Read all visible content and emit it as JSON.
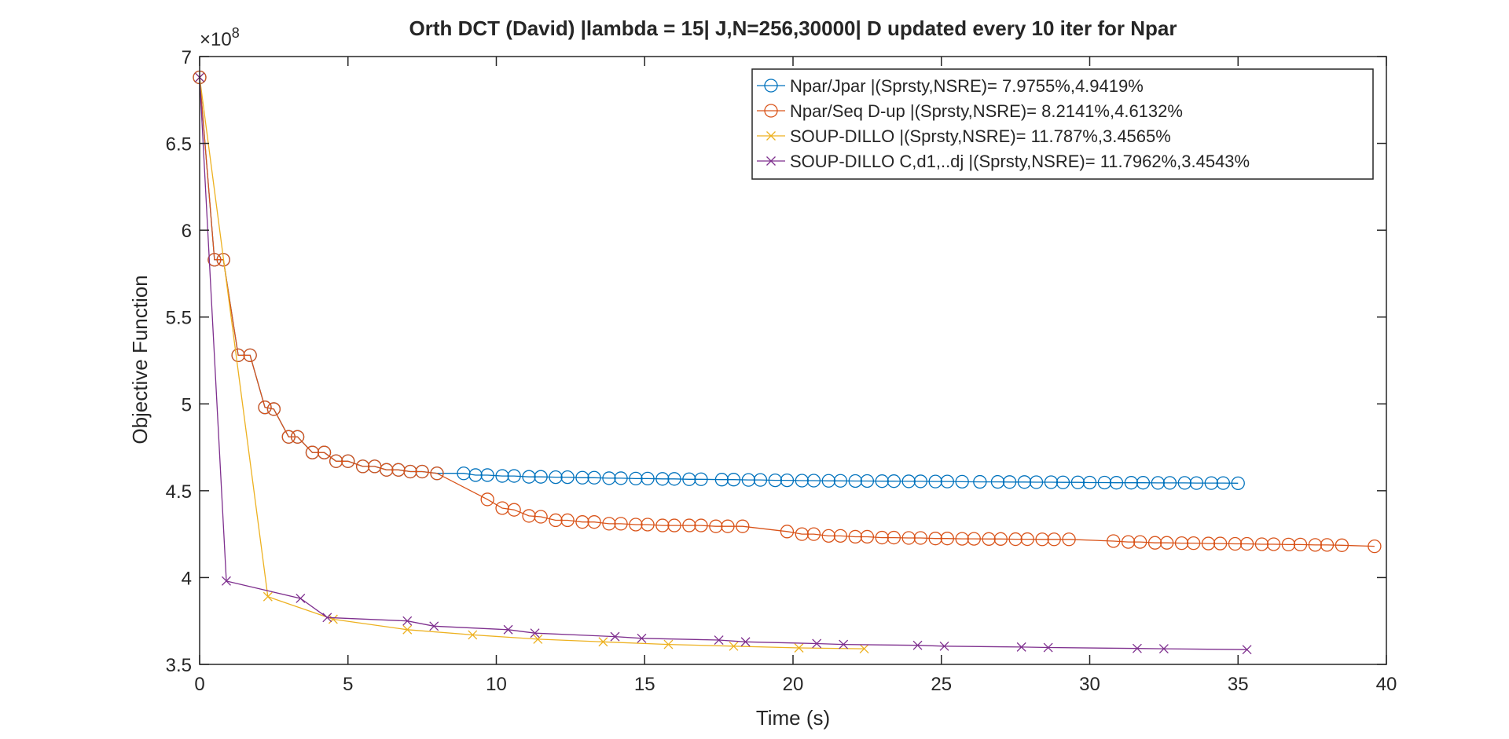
{
  "chart_data": {
    "type": "line",
    "title": "Orth DCT (David) |lambda = 15| J,N=256,30000| D updated every 10 iter for Npar",
    "xlabel": "Time (s)",
    "ylabel": "Objective Function",
    "y_exponent_label": "×10",
    "y_exponent_power": "8",
    "xlim": [
      0,
      40
    ],
    "ylim": [
      3.5,
      7
    ],
    "xticks": [
      0,
      5,
      10,
      15,
      20,
      25,
      30,
      35,
      40
    ],
    "yticks": [
      3.5,
      4,
      4.5,
      5,
      5.5,
      6,
      6.5,
      7
    ],
    "xtick_labels": [
      "0",
      "5",
      "10",
      "15",
      "20",
      "25",
      "30",
      "35",
      "40"
    ],
    "ytick_labels": [
      "3.5",
      "4",
      "4.5",
      "5",
      "5.5",
      "6",
      "6.5",
      "7"
    ],
    "grid": false,
    "legend_position": "top-right",
    "series": [
      {
        "name": "Npar/Jpar |(Sprsty,NSRE)= 7.9755%,4.9419%",
        "color": "#0072BD",
        "marker": "circle",
        "x": [
          0,
          0.5,
          0.8,
          1.3,
          1.7,
          2.2,
          2.5,
          3.0,
          3.3,
          3.8,
          4.2,
          4.6,
          5.0,
          5.5,
          5.9,
          6.3,
          6.7,
          7.1,
          7.5,
          8.0,
          8.9,
          9.3,
          9.7,
          10.2,
          10.6,
          11.1,
          11.5,
          12.0,
          12.4,
          12.9,
          13.3,
          13.8,
          14.2,
          14.7,
          15.1,
          15.6,
          16.0,
          16.5,
          16.9,
          17.6,
          18.0,
          18.5,
          18.9,
          19.4,
          19.8,
          20.3,
          20.7,
          21.2,
          21.6,
          22.1,
          22.5,
          23.0,
          23.4,
          23.9,
          24.3,
          24.8,
          25.2,
          25.7,
          26.3,
          26.9,
          27.3,
          27.8,
          28.2,
          28.7,
          29.1,
          29.6,
          30.0,
          30.5,
          30.9,
          31.4,
          31.8,
          32.3,
          32.7,
          33.2,
          33.6,
          34.1,
          34.5,
          35.0
        ],
        "y": [
          6.88,
          5.83,
          5.83,
          5.28,
          5.28,
          4.98,
          4.97,
          4.81,
          4.81,
          4.72,
          4.72,
          4.67,
          4.67,
          4.64,
          4.64,
          4.62,
          4.62,
          4.61,
          4.61,
          4.6,
          4.6,
          4.59,
          4.59,
          4.585,
          4.585,
          4.58,
          4.58,
          4.578,
          4.578,
          4.575,
          4.575,
          4.572,
          4.572,
          4.57,
          4.57,
          4.568,
          4.568,
          4.566,
          4.566,
          4.564,
          4.564,
          4.562,
          4.562,
          4.56,
          4.56,
          4.558,
          4.558,
          4.557,
          4.557,
          4.556,
          4.556,
          4.555,
          4.555,
          4.554,
          4.554,
          4.553,
          4.553,
          4.552,
          4.551,
          4.551,
          4.55,
          4.55,
          4.549,
          4.549,
          4.548,
          4.548,
          4.547,
          4.547,
          4.546,
          4.546,
          4.546,
          4.545,
          4.545,
          4.545,
          4.544,
          4.544,
          4.544,
          4.543
        ]
      },
      {
        "name": "Npar/Seq D-up |(Sprsty,NSRE)= 8.2141%,4.6132%",
        "color": "#D95319",
        "marker": "circle",
        "x": [
          0,
          0.5,
          0.8,
          1.3,
          1.7,
          2.2,
          2.5,
          3.0,
          3.3,
          3.8,
          4.2,
          4.6,
          5.0,
          5.5,
          5.9,
          6.3,
          6.7,
          7.1,
          7.5,
          8.0,
          9.7,
          10.2,
          10.6,
          11.1,
          11.5,
          12.0,
          12.4,
          12.9,
          13.3,
          13.8,
          14.2,
          14.7,
          15.1,
          15.6,
          16.0,
          16.5,
          16.9,
          17.4,
          17.8,
          18.3,
          19.8,
          20.3,
          20.7,
          21.2,
          21.6,
          22.1,
          22.5,
          23.0,
          23.4,
          23.9,
          24.3,
          24.8,
          25.2,
          25.7,
          26.1,
          26.6,
          27.0,
          27.5,
          27.9,
          28.4,
          28.8,
          29.3,
          30.8,
          31.3,
          31.7,
          32.2,
          32.6,
          33.1,
          33.5,
          34.0,
          34.4,
          34.9,
          35.3,
          35.8,
          36.2,
          36.7,
          37.1,
          37.6,
          38.0,
          38.5,
          39.6
        ],
        "y": [
          6.88,
          5.83,
          5.83,
          5.28,
          5.28,
          4.98,
          4.97,
          4.81,
          4.81,
          4.72,
          4.72,
          4.67,
          4.67,
          4.64,
          4.64,
          4.62,
          4.62,
          4.61,
          4.61,
          4.6,
          4.45,
          4.4,
          4.39,
          4.355,
          4.35,
          4.33,
          4.33,
          4.32,
          4.32,
          4.31,
          4.31,
          4.305,
          4.305,
          4.3,
          4.3,
          4.3,
          4.3,
          4.295,
          4.295,
          4.295,
          4.265,
          4.25,
          4.25,
          4.24,
          4.24,
          4.235,
          4.235,
          4.23,
          4.23,
          4.228,
          4.228,
          4.225,
          4.225,
          4.223,
          4.223,
          4.222,
          4.222,
          4.221,
          4.221,
          4.22,
          4.22,
          4.22,
          4.21,
          4.205,
          4.205,
          4.2,
          4.2,
          4.198,
          4.198,
          4.196,
          4.196,
          4.194,
          4.194,
          4.192,
          4.192,
          4.19,
          4.19,
          4.188,
          4.188,
          4.186,
          4.18
        ]
      },
      {
        "name": "SOUP-DILLO |(Sprsty,NSRE)= 11.787%,3.4565%",
        "color": "#EDB120",
        "marker": "x",
        "x": [
          0,
          2.3,
          4.5,
          7.0,
          9.2,
          11.4,
          13.6,
          15.8,
          18.0,
          20.2,
          22.4
        ],
        "y": [
          6.88,
          3.89,
          3.76,
          3.7,
          3.67,
          3.645,
          3.63,
          3.615,
          3.605,
          3.595,
          3.59
        ]
      },
      {
        "name": "SOUP-DILLO C,d1,..dj |(Sprsty,NSRE)= 11.7962%,3.4543%",
        "color": "#7E2F8E",
        "marker": "x",
        "x": [
          0,
          0.9,
          3.4,
          4.3,
          7.0,
          7.9,
          10.4,
          11.3,
          14.0,
          14.9,
          17.5,
          18.4,
          20.8,
          21.7,
          24.2,
          25.1,
          27.7,
          28.6,
          31.6,
          32.5,
          35.3
        ],
        "y": [
          6.88,
          3.98,
          3.88,
          3.77,
          3.75,
          3.72,
          3.7,
          3.68,
          3.66,
          3.65,
          3.64,
          3.63,
          3.62,
          3.615,
          3.61,
          3.605,
          3.6,
          3.597,
          3.592,
          3.59,
          3.585
        ]
      }
    ]
  }
}
